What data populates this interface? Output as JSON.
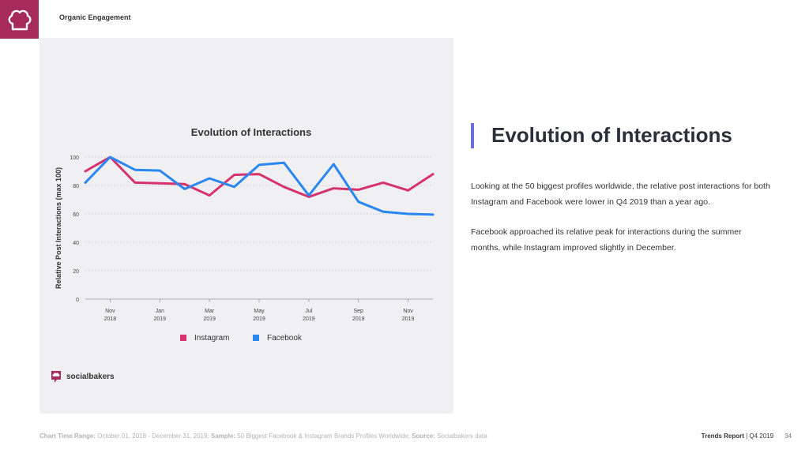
{
  "header": {
    "logo_icon": "chef-hat-icon",
    "section_title": "Organic Engagement"
  },
  "chart_data": {
    "type": "line",
    "title": "Evolution of Interactions",
    "ylabel": "Relative Post Interactions (max 100)",
    "xlabel": "",
    "ylim": [
      0,
      100
    ],
    "yticks": [
      0,
      20,
      40,
      60,
      80,
      100
    ],
    "x": [
      "2018-10",
      "2018-11",
      "2018-12",
      "2019-01",
      "2019-02",
      "2019-03",
      "2019-04",
      "2019-05",
      "2019-06",
      "2019-07",
      "2019-08",
      "2019-09",
      "2019-10",
      "2019-11",
      "2019-12"
    ],
    "x_tick_labels": [
      {
        "x": "2018-11",
        "line1": "Nov",
        "line2": "2018"
      },
      {
        "x": "2019-01",
        "line1": "Jan",
        "line2": "2019"
      },
      {
        "x": "2019-03",
        "line1": "Mar",
        "line2": "2019"
      },
      {
        "x": "2019-05",
        "line1": "May",
        "line2": "2019"
      },
      {
        "x": "2019-07",
        "line1": "Jul",
        "line2": "2019"
      },
      {
        "x": "2019-09",
        "line1": "Sep",
        "line2": "2019"
      },
      {
        "x": "2019-11",
        "line1": "Nov",
        "line2": "2019"
      }
    ],
    "grid": true,
    "legend_position": "bottom-center",
    "series": [
      {
        "name": "Instagram",
        "color": "#d6336c",
        "values": [
          90,
          100,
          82,
          81.5,
          81,
          73,
          87.5,
          88,
          79,
          72,
          78,
          77,
          82,
          76.5,
          88
        ]
      },
      {
        "name": "Facebook",
        "color": "#2b87f0",
        "values": [
          82,
          100,
          91,
          90.5,
          77.5,
          85,
          79,
          94.5,
          96,
          73,
          95,
          68.5,
          61.5,
          60,
          59.5
        ]
      }
    ]
  },
  "brand": {
    "icon": "socialbakers-logo-icon",
    "name": "socialbakers"
  },
  "text_panel": {
    "heading": "Evolution of Interactions",
    "paragraph1": "Looking at the 50 biggest profiles worldwide, the relative post interactions for both Instagram and Facebook were lower in Q4 2019 than a year ago.",
    "paragraph2": "Facebook approached its relative peak for interactions during the summer months, while Instagram improved slightly in December."
  },
  "footer": {
    "range_label": "Chart Time Range:",
    "range_value": " October  01, 2018 - December 31, 2019; ",
    "sample_label": "Sample:",
    "sample_value": " 50 Biggest Facebook & Instagram Brands Profiles Worldwide; ",
    "source_label": "Source:",
    "source_value": " Socialbakers data",
    "report_label": "Trends Report",
    "report_period": " | Q4 2019",
    "page_number": "34"
  },
  "colors": {
    "brand": "#a72a5c",
    "accent_bar": "#6b6ee0",
    "panel_bg": "#f0f0f2"
  }
}
